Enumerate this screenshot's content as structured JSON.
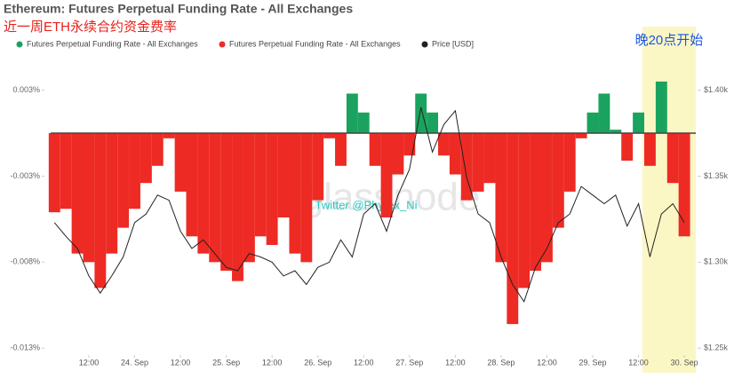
{
  "chart_data": {
    "type": "bar",
    "title": "Ethereum: Futures Perpetual Funding Rate - All Exchanges",
    "subtitle": "近一周ETH永续合约资金费率",
    "annotations": [
      "Twitter @Phyrex_Ni",
      "glassnode"
    ],
    "highlight": {
      "label": "晚20点开始",
      "x": [
        157,
        171
      ],
      "color": "#fbf7c4"
    },
    "x": [
      3,
      6,
      9,
      12,
      15,
      18,
      21,
      24,
      27,
      30,
      33,
      36,
      39,
      42,
      45,
      48,
      51,
      54,
      57,
      60,
      63,
      66,
      69,
      72,
      75,
      78,
      81,
      84,
      87,
      90,
      93,
      96,
      99,
      102,
      105,
      108,
      111,
      114,
      117,
      120,
      123,
      126,
      129,
      132,
      135,
      138,
      141,
      144,
      147,
      150,
      153,
      156,
      159,
      162,
      165,
      168
    ],
    "xlim": [
      2,
      171
    ],
    "xticks": [
      {
        "value": 12,
        "label": "12:00"
      },
      {
        "value": 24,
        "label": "24. Sep"
      },
      {
        "value": 36,
        "label": "12:00"
      },
      {
        "value": 48,
        "label": "25. Sep"
      },
      {
        "value": 60,
        "label": "12:00"
      },
      {
        "value": 72,
        "label": "26. Sep"
      },
      {
        "value": 84,
        "label": "12:00"
      },
      {
        "value": 96,
        "label": "27. Sep"
      },
      {
        "value": 108,
        "label": "12:00"
      },
      {
        "value": 120,
        "label": "28. Sep"
      },
      {
        "value": 132,
        "label": "12:00"
      },
      {
        "value": 144,
        "label": "29. Sep"
      },
      {
        "value": 156,
        "label": "12:00"
      },
      {
        "value": 168,
        "label": "30. Sep"
      }
    ],
    "ylim": [
      -0.0129,
      0.0032
    ],
    "yticks": [
      {
        "value": 0.0025,
        "label": "0.003%"
      },
      {
        "value": -0.0025,
        "label": "-0.003%"
      },
      {
        "value": -0.0075,
        "label": "-0.008%"
      },
      {
        "value": -0.0125,
        "label": "-0.013%"
      }
    ],
    "y2lim": [
      1246,
      1407
    ],
    "y2ticks": [
      {
        "value": 1400,
        "label": "$1.40k"
      },
      {
        "value": 1350,
        "label": "$1.35k"
      },
      {
        "value": 1300,
        "label": "$1.30k"
      },
      {
        "value": 1250,
        "label": "$1.25k"
      }
    ],
    "series": [
      {
        "name": "Futures Perpetual Funding Rate - All Exchanges",
        "color": "#1aa35e",
        "negative_color": "#ee2a24",
        "values": [
          -0.0046,
          -0.0044,
          -0.007,
          -0.0075,
          -0.009,
          -0.007,
          -0.0055,
          -0.0044,
          -0.0029,
          -0.0019,
          -0.0003,
          -0.0034,
          -0.006,
          -0.007,
          -0.0075,
          -0.008,
          -0.0086,
          -0.0075,
          -0.006,
          -0.0065,
          -0.0049,
          -0.007,
          -0.0075,
          -0.0039,
          -0.0003,
          -0.0019,
          0.0023,
          0.0012,
          -0.0019,
          -0.0049,
          -0.0024,
          -0.0013,
          0.0023,
          0.0012,
          -0.0013,
          -0.0024,
          -0.0039,
          -0.0034,
          -0.0029,
          -0.0075,
          -0.0111,
          -0.009,
          -0.008,
          -0.0075,
          -0.0055,
          -0.0034,
          -0.0003,
          0.0012,
          0.0023,
          0.0002,
          -0.0016,
          0.0012,
          -0.0019,
          0.003,
          -0.0029,
          -0.006
        ]
      },
      {
        "name": "Price [USD]",
        "color": "#222222",
        "axis": "y2",
        "values": [
          1323,
          1315,
          1308,
          1292,
          1282,
          1292,
          1303,
          1323,
          1328,
          1339,
          1336,
          1318,
          1308,
          1313,
          1305,
          1297,
          1295,
          1305,
          1303,
          1300,
          1292,
          1295,
          1287,
          1297,
          1300,
          1313,
          1303,
          1328,
          1334,
          1318,
          1339,
          1354,
          1390,
          1364,
          1380,
          1388,
          1349,
          1328,
          1323,
          1303,
          1287,
          1277,
          1297,
          1308,
          1323,
          1328,
          1344,
          1339,
          1334,
          1339,
          1321,
          1334,
          1303,
          1328,
          1334,
          1323
        ]
      }
    ]
  }
}
